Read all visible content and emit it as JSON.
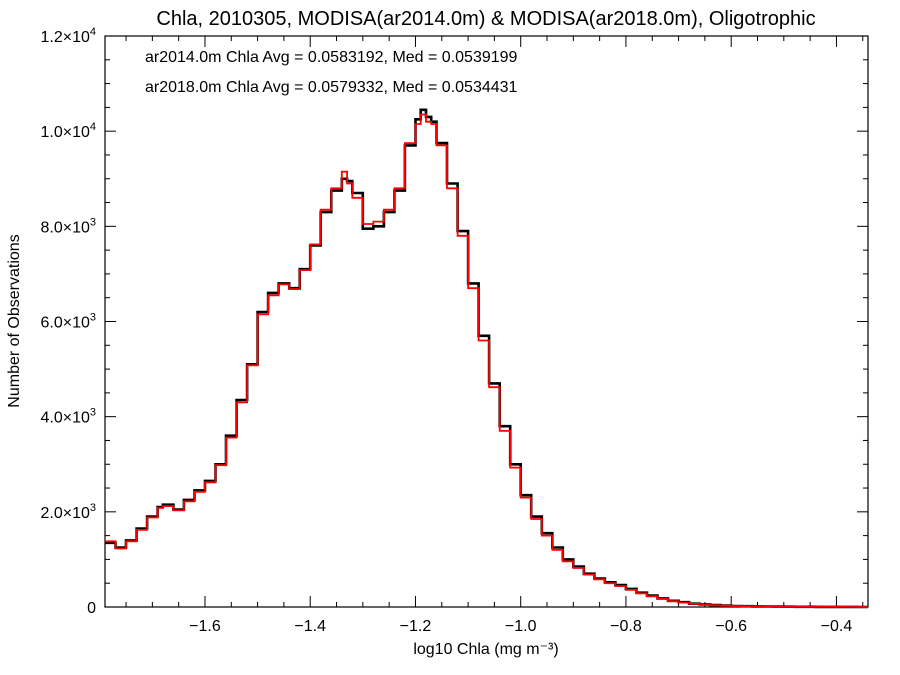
{
  "chart_data": {
    "type": "line",
    "title": "Chla, 2010305, MODISA(ar2014.0m) & MODISA(ar2018.0m), Oligotrophic",
    "xlabel": "log10 Chla (mg m⁻³)",
    "ylabel": "Number of Observations",
    "xlim": [
      -1.79,
      -0.34
    ],
    "ylim": [
      0,
      12000
    ],
    "x_ticks": [
      -1.6,
      -1.4,
      -1.2,
      -1.0,
      -0.8,
      -0.6,
      -0.4
    ],
    "x_tick_labels": [
      "−1.6",
      "−1.4",
      "−1.2",
      "−1.0",
      "−0.8",
      "−0.6",
      "−0.4"
    ],
    "y_ticks": [
      0,
      2000,
      4000,
      6000,
      8000,
      10000,
      12000
    ],
    "y_tick_labels": [
      {
        "mantissa": "0",
        "exp": ""
      },
      {
        "mantissa": "2.0×10",
        "exp": "3"
      },
      {
        "mantissa": "4.0×10",
        "exp": "3"
      },
      {
        "mantissa": "6.0×10",
        "exp": "3"
      },
      {
        "mantissa": "8.0×10",
        "exp": "3"
      },
      {
        "mantissa": "1.0×10",
        "exp": "4"
      },
      {
        "mantissa": "1.2×10",
        "exp": "4"
      }
    ],
    "grid": false,
    "legend_placement": "top-left",
    "series": [
      {
        "name": "ar2014.0m Chla Avg = 0.0583192, Med = 0.0539199",
        "color": "#000000",
        "x": [
          -1.79,
          -1.77,
          -1.75,
          -1.73,
          -1.71,
          -1.69,
          -1.68,
          -1.66,
          -1.64,
          -1.62,
          -1.6,
          -1.58,
          -1.56,
          -1.54,
          -1.52,
          -1.5,
          -1.48,
          -1.46,
          -1.44,
          -1.42,
          -1.4,
          -1.38,
          -1.36,
          -1.34,
          -1.33,
          -1.32,
          -1.3,
          -1.28,
          -1.26,
          -1.24,
          -1.22,
          -1.2,
          -1.19,
          -1.18,
          -1.17,
          -1.16,
          -1.14,
          -1.12,
          -1.1,
          -1.08,
          -1.06,
          -1.04,
          -1.02,
          -1.0,
          -0.98,
          -0.96,
          -0.94,
          -0.92,
          -0.9,
          -0.88,
          -0.86,
          -0.84,
          -0.82,
          -0.8,
          -0.78,
          -0.76,
          -0.74,
          -0.72,
          -0.7,
          -0.68,
          -0.66,
          -0.64,
          -0.62,
          -0.6,
          -0.58,
          -0.56,
          -0.54,
          -0.52,
          -0.5,
          -0.48,
          -0.46,
          -0.44,
          -0.42,
          -0.4,
          -0.38,
          -0.36,
          -0.34
        ],
        "values": [
          1350,
          1250,
          1400,
          1650,
          1900,
          2100,
          2150,
          2050,
          2250,
          2450,
          2650,
          3000,
          3600,
          4350,
          5100,
          6200,
          6600,
          6800,
          6700,
          7100,
          7600,
          8300,
          8750,
          9000,
          8950,
          8700,
          7950,
          8000,
          8300,
          8750,
          9700,
          10250,
          10450,
          10300,
          10200,
          9750,
          8900,
          7900,
          6800,
          5700,
          4700,
          3800,
          3000,
          2350,
          1900,
          1550,
          1250,
          1000,
          850,
          700,
          600,
          520,
          460,
          380,
          300,
          240,
          180,
          130,
          100,
          70,
          55,
          40,
          30,
          22,
          16,
          12,
          10,
          8,
          6,
          5,
          4,
          3,
          3,
          2,
          2,
          1,
          1
        ]
      },
      {
        "name": "ar2018.0m Chla Avg = 0.0579332, Med = 0.0534431",
        "color": "#ff0000",
        "x": [
          -1.79,
          -1.77,
          -1.75,
          -1.73,
          -1.71,
          -1.69,
          -1.68,
          -1.66,
          -1.64,
          -1.62,
          -1.6,
          -1.58,
          -1.56,
          -1.54,
          -1.52,
          -1.5,
          -1.48,
          -1.46,
          -1.44,
          -1.42,
          -1.4,
          -1.38,
          -1.36,
          -1.34,
          -1.33,
          -1.32,
          -1.3,
          -1.28,
          -1.26,
          -1.24,
          -1.22,
          -1.2,
          -1.19,
          -1.18,
          -1.17,
          -1.16,
          -1.14,
          -1.12,
          -1.1,
          -1.08,
          -1.06,
          -1.04,
          -1.02,
          -1.0,
          -0.98,
          -0.96,
          -0.94,
          -0.92,
          -0.9,
          -0.88,
          -0.86,
          -0.84,
          -0.82,
          -0.8,
          -0.78,
          -0.76,
          -0.74,
          -0.72,
          -0.7,
          -0.68,
          -0.66,
          -0.64,
          -0.62,
          -0.6,
          -0.58,
          -0.56,
          -0.54,
          -0.52,
          -0.5,
          -0.48,
          -0.46,
          -0.44,
          -0.42,
          -0.4,
          -0.38,
          -0.36,
          -0.34
        ],
        "values": [
          1380,
          1230,
          1380,
          1620,
          1880,
          2080,
          2120,
          2030,
          2220,
          2420,
          2620,
          2980,
          3560,
          4300,
          5080,
          6150,
          6550,
          6780,
          6680,
          7080,
          7620,
          8350,
          8800,
          9150,
          8900,
          8600,
          8050,
          8100,
          8350,
          8800,
          9750,
          10150,
          10350,
          10200,
          10150,
          9700,
          8800,
          7800,
          6700,
          5600,
          4620,
          3700,
          2930,
          2300,
          1850,
          1500,
          1200,
          960,
          820,
          680,
          580,
          500,
          440,
          360,
          285,
          225,
          170,
          122,
          92,
          65,
          50,
          36,
          27,
          20,
          14,
          11,
          9,
          7,
          5,
          4,
          3,
          3,
          2,
          2,
          2,
          1,
          1
        ]
      }
    ]
  }
}
